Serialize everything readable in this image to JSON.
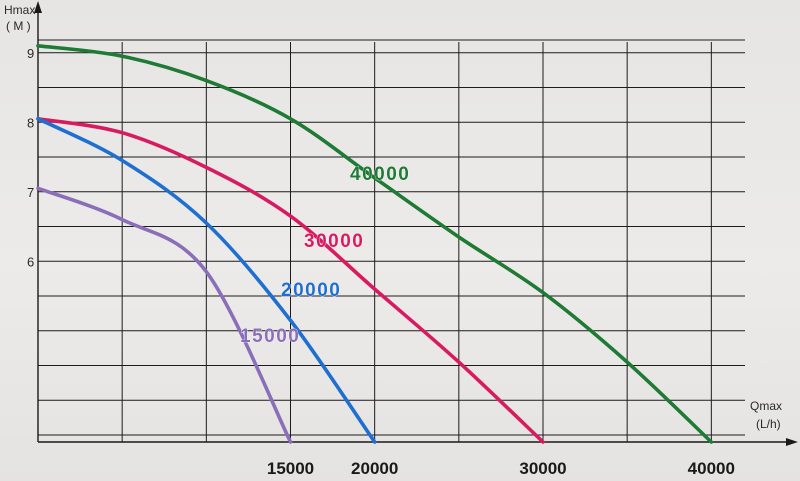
{
  "chart_data": {
    "type": "line",
    "xlabel": "Qmax",
    "xunit": "(L/h)",
    "ylabel": "Hmax",
    "yunit": "( M )",
    "xlim": [
      0,
      42000
    ],
    "ylim": [
      3.4,
      9.5
    ],
    "grid": true,
    "x_tick_labels": [
      "15000",
      "20000",
      "30000",
      "40000"
    ],
    "y_tick_labels": [
      "6",
      "7",
      "8",
      "9"
    ],
    "series": [
      {
        "name": "40000",
        "color": "#1e7a34",
        "x": [
          0,
          5000,
          10000,
          15000,
          20000,
          25000,
          30000,
          35000,
          40000
        ],
        "y": [
          9.1,
          8.95,
          8.6,
          8.05,
          7.2,
          6.35,
          5.55,
          4.55,
          3.4
        ]
      },
      {
        "name": "30000",
        "color": "#d81b60",
        "x": [
          0,
          5000,
          10000,
          15000,
          20000,
          25000,
          30000
        ],
        "y": [
          8.05,
          7.85,
          7.35,
          6.65,
          5.6,
          4.55,
          3.4
        ]
      },
      {
        "name": "20000",
        "color": "#1f6fd1",
        "x": [
          0,
          5000,
          10000,
          15000,
          20000
        ],
        "y": [
          8.05,
          7.45,
          6.55,
          5.15,
          3.4
        ]
      },
      {
        "name": "15000",
        "color": "#8a6fb8",
        "x": [
          0,
          5000,
          10000,
          15000
        ],
        "y": [
          7.05,
          6.6,
          5.85,
          3.4
        ]
      }
    ]
  }
}
